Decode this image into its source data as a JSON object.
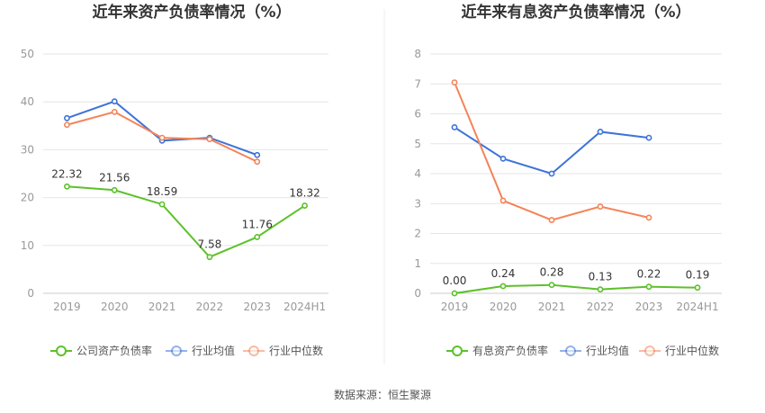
{
  "source": "数据来源：恒生聚源",
  "chart_data": [
    {
      "type": "line",
      "title": "近年来资产负债率情况（%）",
      "categories": [
        "2019",
        "2020",
        "2021",
        "2022",
        "2023",
        "2024H1"
      ],
      "ylim": [
        0,
        50
      ],
      "yticks": [
        0,
        10,
        20,
        30,
        40,
        50
      ],
      "grid": true,
      "legend_position": "bottom",
      "series": [
        {
          "name": "公司资产负债率",
          "color": "#5cc12a",
          "values": [
            22.32,
            21.56,
            18.59,
            7.58,
            11.76,
            18.32
          ],
          "labels": [
            "22.32",
            "21.56",
            "18.59",
            "7.58",
            "11.76",
            "18.32"
          ]
        },
        {
          "name": "行业均值",
          "color": "#3e73d8",
          "values": [
            36.6,
            40.1,
            31.9,
            32.5,
            28.9,
            null
          ]
        },
        {
          "name": "行业中位数",
          "color": "#f4845a",
          "values": [
            35.2,
            37.9,
            32.5,
            32.2,
            27.5,
            null
          ]
        }
      ]
    },
    {
      "type": "line",
      "title": "近年来有息资产负债率情况（%）",
      "categories": [
        "2019",
        "2020",
        "2021",
        "2022",
        "2023",
        "2024H1"
      ],
      "ylim": [
        0,
        8
      ],
      "yticks": [
        0,
        1,
        2,
        3,
        4,
        5,
        6,
        7,
        8
      ],
      "grid": true,
      "legend_position": "bottom",
      "series": [
        {
          "name": "有息资产负债率",
          "color": "#5cc12a",
          "values": [
            0.0,
            0.24,
            0.28,
            0.13,
            0.22,
            0.19
          ],
          "labels": [
            "0.00",
            "0.24",
            "0.28",
            "0.13",
            "0.22",
            "0.19"
          ]
        },
        {
          "name": "行业均值",
          "color": "#3e73d8",
          "values": [
            5.55,
            4.5,
            4.0,
            5.4,
            5.2,
            null
          ]
        },
        {
          "name": "行业中位数",
          "color": "#f4845a",
          "values": [
            7.05,
            3.1,
            2.45,
            2.9,
            2.53,
            null
          ]
        }
      ]
    }
  ]
}
